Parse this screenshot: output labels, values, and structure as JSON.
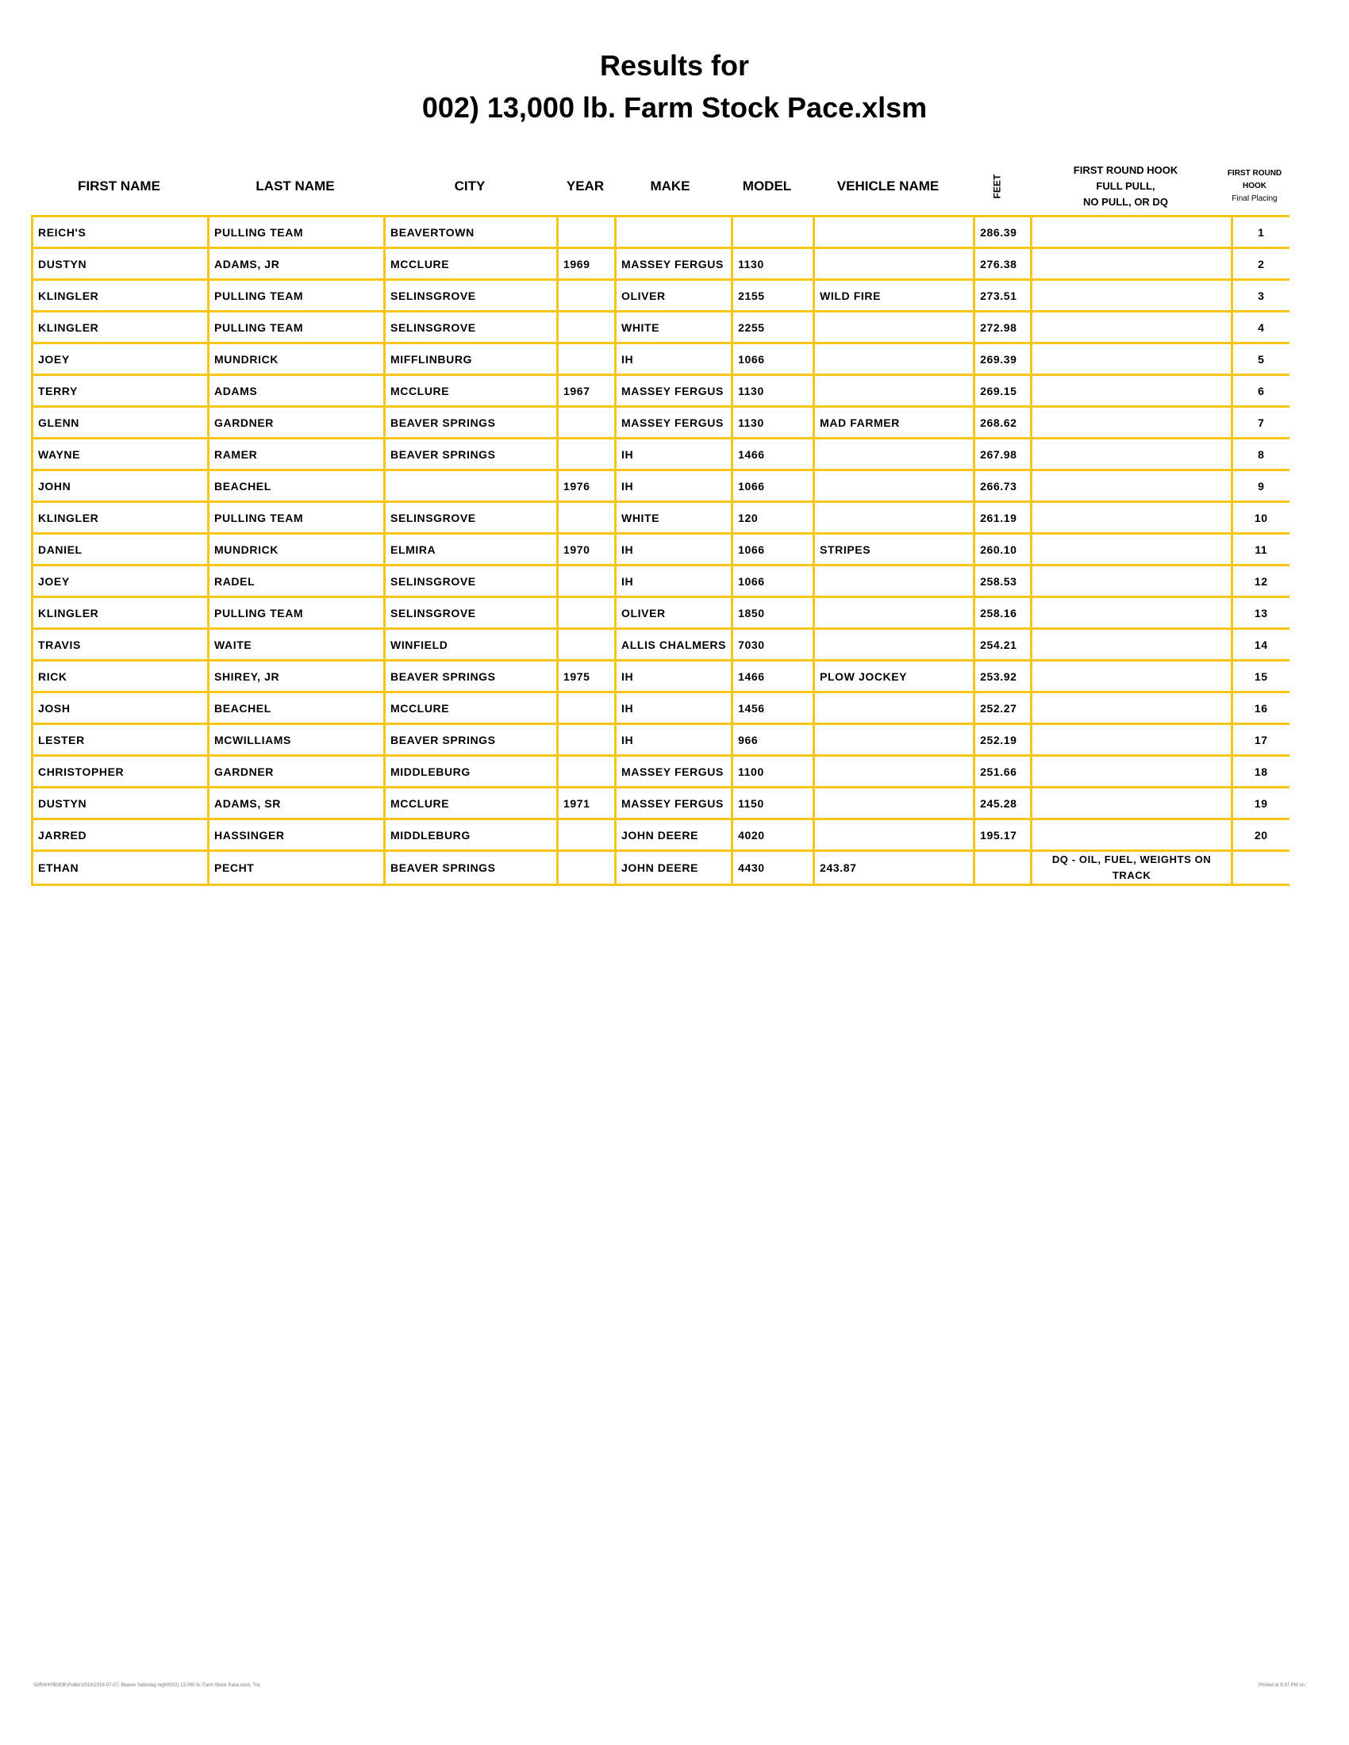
{
  "title_line1": "Results for",
  "title_line2": "002) 13,000 lb. Farm Stock Pace.xlsm",
  "headers": {
    "first_name": "FIRST NAME",
    "last_name": "LAST NAME",
    "city": "CITY",
    "year": "YEAR",
    "make": "MAKE",
    "model": "MODEL",
    "vehicle_name": "VEHICLE NAME",
    "feet": "FEET",
    "hook_1": "FIRST ROUND HOOK",
    "hook_2": "FULL PULL,",
    "hook_3": "NO PULL, OR DQ",
    "placing_1": "FIRST ROUND",
    "placing_2": "HOOK",
    "placing_3": "Final Placing"
  },
  "accent_color": "#F5C518",
  "rows": [
    [
      "REICH'S",
      "PULLING TEAM",
      "BEAVERTOWN",
      "",
      "",
      "",
      "",
      "286.39",
      "",
      "1"
    ],
    [
      "DUSTYN",
      "ADAMS, JR",
      "MCCLURE",
      "1969",
      "MASSEY FERGUS",
      "1130",
      "",
      "276.38",
      "",
      "2"
    ],
    [
      "KLINGLER",
      "PULLING TEAM",
      "SELINSGROVE",
      "",
      "OLIVER",
      "2155",
      "WILD FIRE",
      "273.51",
      "",
      "3"
    ],
    [
      "KLINGLER",
      "PULLING TEAM",
      "SELINSGROVE",
      "",
      "WHITE",
      "2255",
      "",
      "272.98",
      "",
      "4"
    ],
    [
      "JOEY",
      "MUNDRICK",
      "MIFFLINBURG",
      "",
      "IH",
      "1066",
      "",
      "269.39",
      "",
      "5"
    ],
    [
      "TERRY",
      "ADAMS",
      "MCCLURE",
      "1967",
      "MASSEY FERGUS",
      "1130",
      "",
      "269.15",
      "",
      "6"
    ],
    [
      "GLENN",
      "GARDNER",
      "BEAVER SPRINGS",
      "",
      "MASSEY FERGUS",
      "1130",
      "MAD FARMER",
      "268.62",
      "",
      "7"
    ],
    [
      "WAYNE",
      "RAMER",
      "BEAVER SPRINGS",
      "",
      "IH",
      "1466",
      "",
      "267.98",
      "",
      "8"
    ],
    [
      "JOHN",
      "BEACHEL",
      "",
      "1976",
      "IH",
      "1066",
      "",
      "266.73",
      "",
      "9"
    ],
    [
      "KLINGLER",
      "PULLING TEAM",
      "SELINSGROVE",
      "",
      "WHITE",
      "120",
      "",
      "261.19",
      "",
      "10"
    ],
    [
      "DANIEL",
      "MUNDRICK",
      "ELMIRA",
      "1970",
      "IH",
      "1066",
      "STRIPES",
      "260.10",
      "",
      "11"
    ],
    [
      "JOEY",
      "RADEL",
      "SELINSGROVE",
      "",
      "IH",
      "1066",
      "",
      "258.53",
      "",
      "12"
    ],
    [
      "KLINGLER",
      "PULLING TEAM",
      "SELINSGROVE",
      "",
      "OLIVER",
      "1850",
      "",
      "258.16",
      "",
      "13"
    ],
    [
      "TRAVIS",
      "WAITE",
      "WINFIELD",
      "",
      "ALLIS CHALMERS",
      "7030",
      "",
      "254.21",
      "",
      "14"
    ],
    [
      "RICK",
      "SHIREY, JR",
      "BEAVER SPRINGS",
      "1975",
      "IH",
      "1466",
      "PLOW JOCKEY",
      "253.92",
      "",
      "15"
    ],
    [
      "JOSH",
      "BEACHEL",
      "MCCLURE",
      "",
      "IH",
      "1456",
      "",
      "252.27",
      "",
      "16"
    ],
    [
      "LESTER",
      "MCWILLIAMS",
      "BEAVER SPRINGS",
      "",
      "IH",
      "966",
      "",
      "252.19",
      "",
      "17"
    ],
    [
      "CHRISTOPHER",
      "GARDNER",
      "MIDDLEBURG",
      "",
      "MASSEY FERGUS",
      "1100",
      "",
      "251.66",
      "",
      "18"
    ],
    [
      "DUSTYN",
      "ADAMS, SR",
      "MCCLURE",
      "1971",
      "MASSEY FERGUS",
      "1150",
      "",
      "245.28",
      "",
      "19"
    ],
    [
      "JARRED",
      "HASSINGER",
      "MIDDLEBURG",
      "",
      "JOHN DEERE",
      "4020",
      "",
      "195.17",
      "",
      "20"
    ],
    [
      "ETHAN",
      "PECHT",
      "BEAVER SPRINGS",
      "",
      "JOHN DEERE",
      "4430",
      "243.87",
      "",
      "DQ - OIL, FUEL, WEIGHTS ON TRACK",
      ""
    ]
  ],
  "footer_left": "\\\\DRAHYBOOK\\Public\\2018\\2018-07-07, Beaver Saturday night\\002) 13,000 lb. Farm Stock Pace.xlsm, Tra",
  "footer_right": "Printed at 9:37 PM on"
}
